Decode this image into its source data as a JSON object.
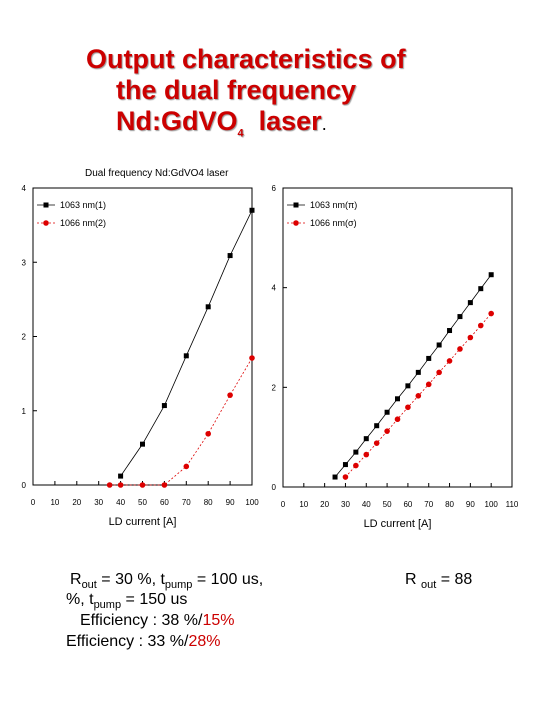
{
  "slide": {
    "title_line1": "Output characteristics of",
    "title_line2": "the dual frequency",
    "title_line3_main": "Nd:GdVO",
    "title_line3_sub": "4",
    "title_line3_rest": "  laser",
    "title_dot": "."
  },
  "captions": {
    "left_line1_a": "R",
    "left_line1_sub_a": "out",
    "left_line1_b": " = 30 %, t",
    "left_line1_sub_b": "pump",
    "left_line1_c": " = 100 us,",
    "left_line2_a": "%, t",
    "left_line2_sub": "pump",
    "left_line2_b": " = 150 us",
    "eff1_label": "Efficiency : 38 %/",
    "eff1_red": "15%",
    "eff2_label": "Efficiency : 33 %/",
    "eff2_red": "28%",
    "right_a": "R ",
    "right_sub": "out",
    "right_b": " = 88"
  },
  "colors": {
    "title": "#cc0000",
    "series1": "#000000",
    "series2": "#dd0000"
  },
  "chart_data": [
    {
      "type": "scatter",
      "title": "Dual frequency Nd:GdVO4 laser",
      "xlabel": "LD current [A]",
      "ylabel": "",
      "xlim": [
        0,
        100
      ],
      "ylim": [
        0,
        4
      ],
      "xticks": [
        0,
        10,
        20,
        30,
        40,
        50,
        60,
        70,
        80,
        90,
        100
      ],
      "yticks": [
        0,
        1,
        2,
        3,
        4
      ],
      "legend": "top-left",
      "series": [
        {
          "name": "1063 nm(1)",
          "marker": "square",
          "x": [
            40,
            50,
            60,
            70,
            80,
            90,
            100
          ],
          "y": [
            0.12,
            0.55,
            1.07,
            1.74,
            2.4,
            3.09,
            3.7
          ]
        },
        {
          "name": "1066 nm(2)",
          "marker": "circle",
          "x": [
            35,
            40,
            50,
            60,
            70,
            80,
            90,
            100
          ],
          "y": [
            0,
            0,
            0,
            0,
            0.25,
            0.69,
            1.21,
            1.71
          ]
        }
      ]
    },
    {
      "type": "scatter",
      "title": "",
      "xlabel": "LD current [A]",
      "ylabel": "",
      "xlim": [
        0,
        110
      ],
      "ylim": [
        0,
        6
      ],
      "xticks": [
        0,
        10,
        20,
        30,
        40,
        50,
        60,
        70,
        80,
        90,
        100,
        110
      ],
      "yticks": [
        0,
        2,
        4,
        6
      ],
      "legend": "top-left",
      "series": [
        {
          "name": "1063 nm(π)",
          "marker": "square",
          "x": [
            25,
            30,
            35,
            40,
            45,
            50,
            55,
            60,
            65,
            70,
            75,
            80,
            85,
            90,
            95,
            100
          ],
          "y": [
            0.2,
            0.45,
            0.7,
            0.97,
            1.23,
            1.5,
            1.77,
            2.03,
            2.3,
            2.58,
            2.85,
            3.14,
            3.42,
            3.7,
            3.98,
            4.26
          ]
        },
        {
          "name": "1066 nm(σ)",
          "marker": "circle",
          "x": [
            30,
            35,
            40,
            45,
            50,
            55,
            60,
            65,
            70,
            75,
            80,
            85,
            90,
            95,
            100
          ],
          "y": [
            0.2,
            0.43,
            0.65,
            0.88,
            1.12,
            1.36,
            1.6,
            1.83,
            2.06,
            2.3,
            2.53,
            2.77,
            3.0,
            3.24,
            3.48
          ]
        }
      ]
    }
  ]
}
